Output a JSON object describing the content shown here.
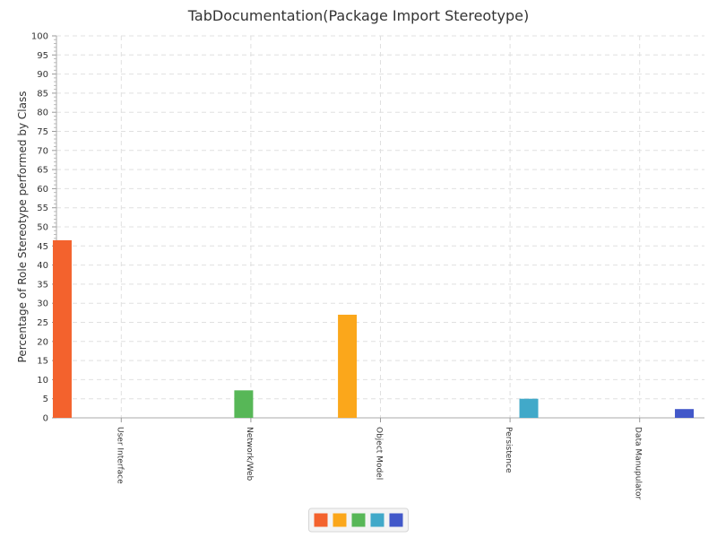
{
  "chart_data": {
    "type": "bar",
    "title": "TabDocumentation(Package Import Stereotype)",
    "xlabel": "",
    "ylabel": "Percentage of Role Stereotype performed by Class",
    "ylim": [
      0,
      100
    ],
    "y_tick_step": 5,
    "grid": true,
    "legend_position": "bottom-center",
    "categories": [
      "User Interface",
      "Network/Web",
      "Object Model",
      "Persistence",
      "Data Manupulator"
    ],
    "series": [
      {
        "values": [
          46.5,
          0,
          0,
          0,
          0
        ],
        "color": "#f3622d"
      },
      {
        "values": [
          0,
          0,
          27.0,
          0,
          0
        ],
        "color": "#fba71b"
      },
      {
        "values": [
          0,
          7.2,
          0,
          0,
          0
        ],
        "color": "#57b757"
      },
      {
        "values": [
          0,
          0,
          0,
          5.0,
          0
        ],
        "color": "#41a9c9"
      },
      {
        "values": [
          0,
          0,
          0,
          0,
          2.3
        ],
        "color": "#4258c9"
      }
    ]
  }
}
